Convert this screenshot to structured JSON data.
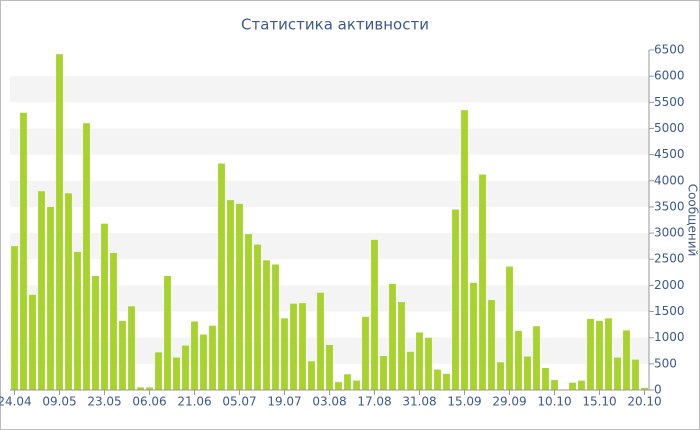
{
  "chart_data": {
    "type": "bar",
    "title": "Статистика активности",
    "y_label": "Сообщений",
    "categories": [
      "24.04",
      null,
      null,
      null,
      null,
      "09.05",
      null,
      null,
      null,
      null,
      "23.05",
      null,
      null,
      null,
      null,
      "06.06",
      null,
      null,
      null,
      null,
      "21.06",
      null,
      null,
      null,
      null,
      "05.07",
      null,
      null,
      null,
      null,
      "19.07",
      null,
      null,
      null,
      null,
      "03.08",
      null,
      null,
      null,
      null,
      "17.08",
      null,
      null,
      null,
      null,
      "31.08",
      null,
      null,
      null,
      null,
      "15.09",
      null,
      null,
      null,
      null,
      "29.09",
      null,
      null,
      null,
      null,
      "10.10",
      null,
      null,
      null,
      null,
      "15.10",
      null,
      null,
      null,
      null,
      "20.10"
    ],
    "values": [
      2750,
      5300,
      1820,
      3800,
      3500,
      6420,
      3760,
      2640,
      5100,
      2180,
      3180,
      2620,
      1320,
      1600,
      50,
      50,
      720,
      2180,
      620,
      850,
      1310,
      1060,
      1230,
      4330,
      3630,
      3560,
      2980,
      2780,
      2480,
      2400,
      1370,
      1650,
      1660,
      550,
      1860,
      860,
      150,
      300,
      180,
      1400,
      2870,
      650,
      2030,
      1680,
      730,
      1100,
      1000,
      390,
      310,
      3450,
      5350,
      2050,
      4120,
      1720,
      530,
      2360,
      1130,
      640,
      1220,
      420,
      190,
      10,
      140,
      180,
      1360,
      1320,
      1370,
      620,
      1140,
      580,
      40
    ],
    "color": "#a8d32f",
    "ylim": [
      0,
      6500
    ],
    "yticks": [
      0,
      500,
      1000,
      1500,
      2000,
      2500,
      3000,
      3500,
      4000,
      4500,
      5000,
      5500,
      6000,
      6500
    ],
    "grid": true
  }
}
